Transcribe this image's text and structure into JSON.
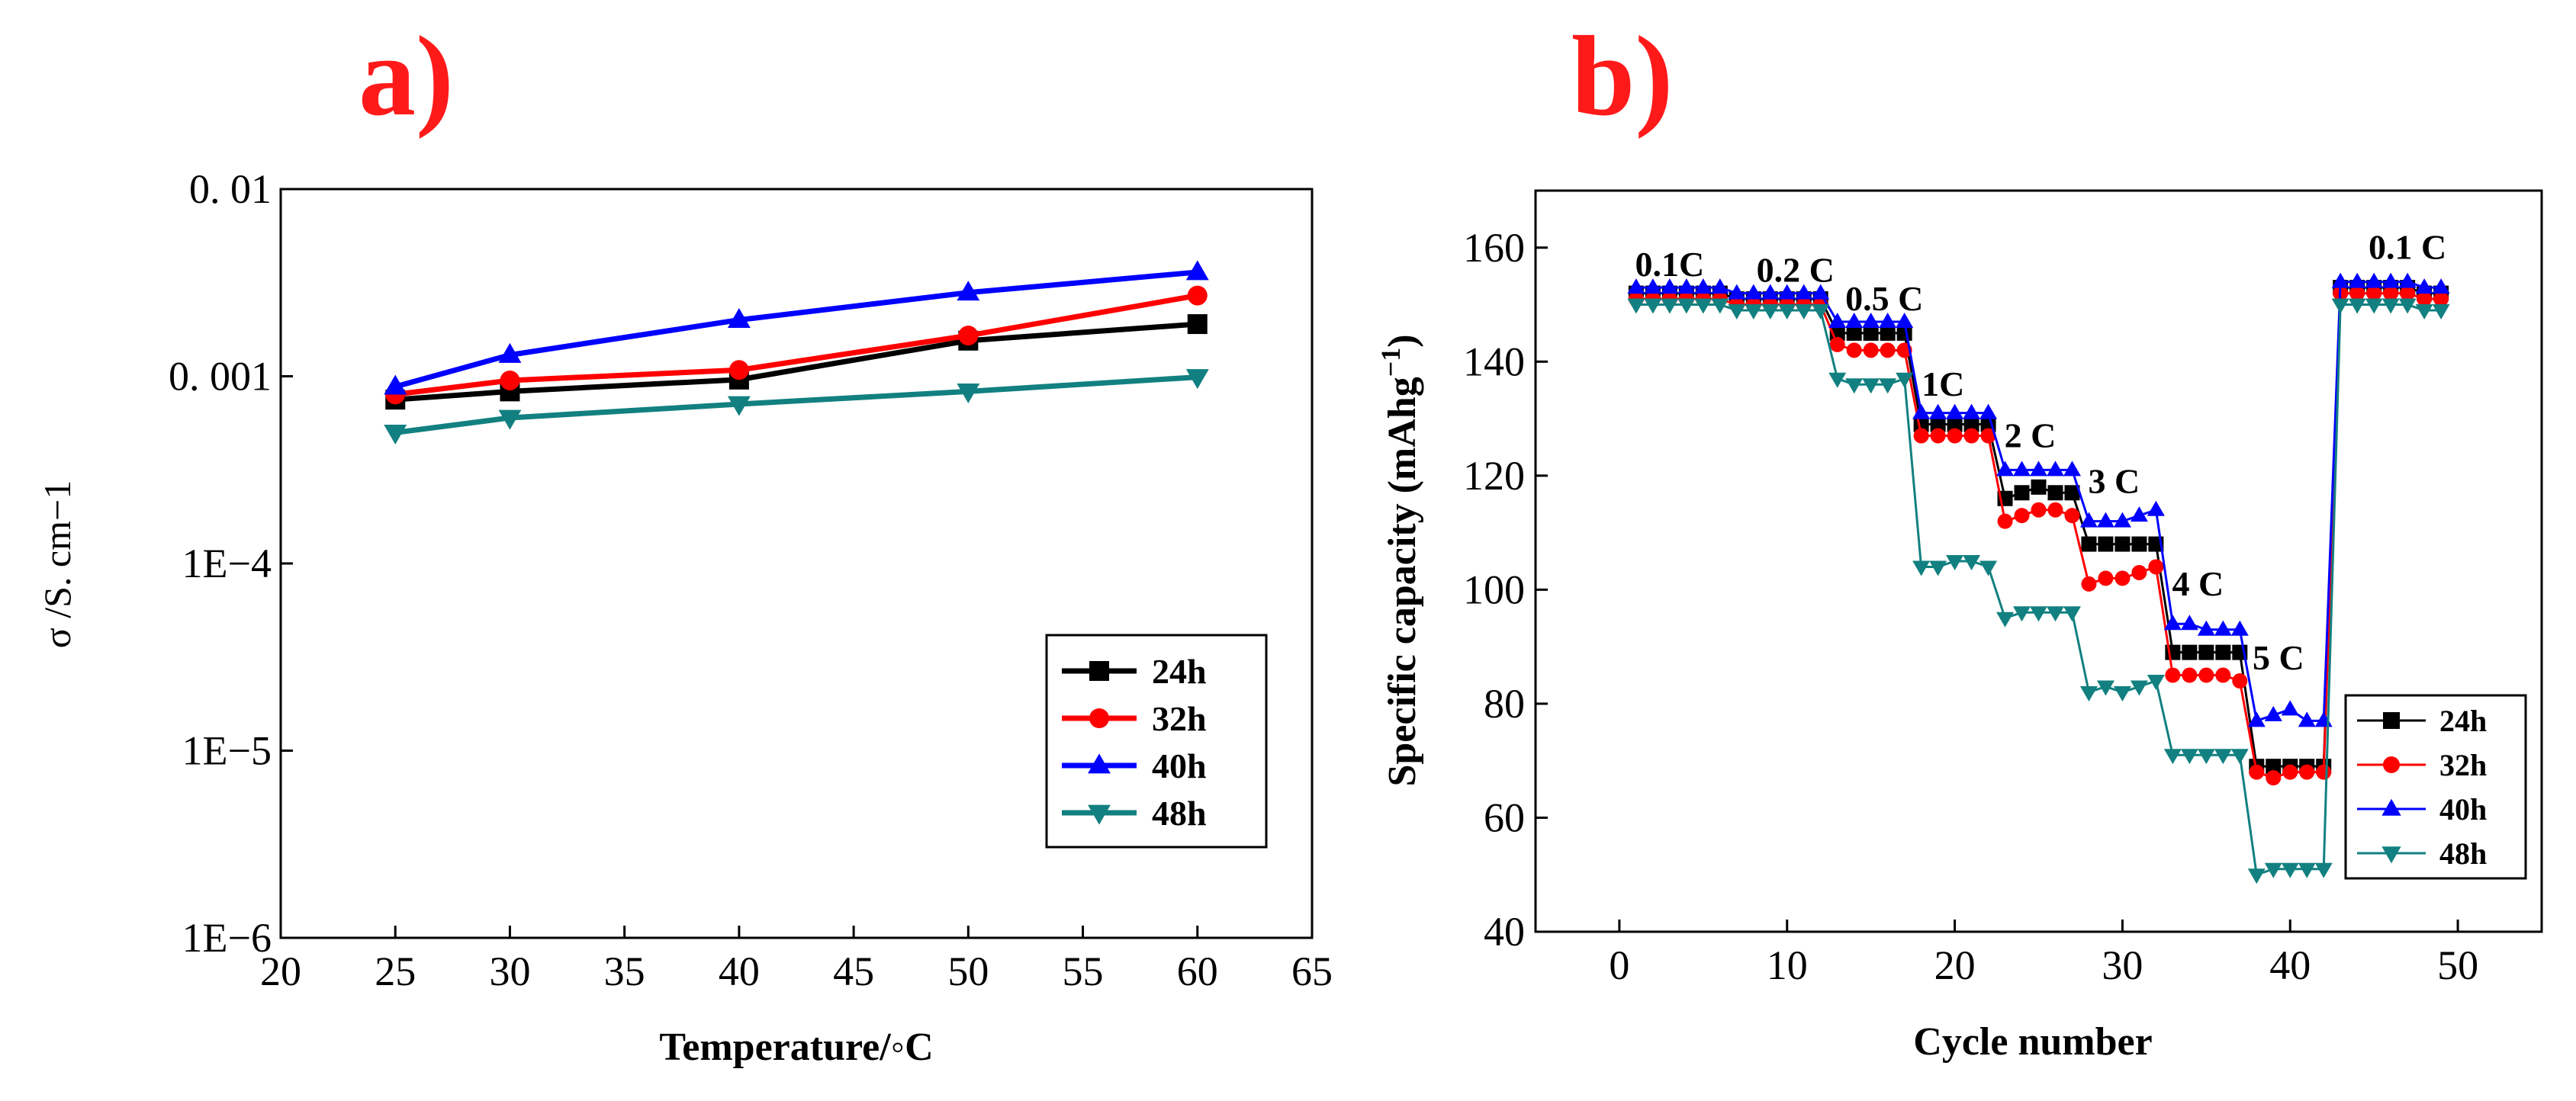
{
  "chart_data": [
    {
      "panel_label": "a)",
      "type": "line",
      "xlabel": "Temperature/◦C",
      "ylabel": "σ /S. cm−1",
      "yscale": "log",
      "xlim": [
        20,
        65
      ],
      "ylim": [
        1e-06,
        0.01
      ],
      "xticks": [
        "20",
        "25",
        "30",
        "35",
        "40",
        "45",
        "50",
        "55",
        "60",
        "65"
      ],
      "yticks": [
        "1E−6",
        "1E−5",
        "1E−4",
        "0. 001",
        "0. 01"
      ],
      "legend_position": "bottom-right",
      "x": [
        25,
        30,
        40,
        50,
        60
      ],
      "series": [
        {
          "name": "24h",
          "color": "#000000",
          "marker": "square",
          "values": [
            0.00075,
            0.00083,
            0.00096,
            0.00155,
            0.0019
          ]
        },
        {
          "name": "32h",
          "color": "#ff0000",
          "marker": "circle",
          "values": [
            0.0008,
            0.00095,
            0.00108,
            0.00165,
            0.0027
          ]
        },
        {
          "name": "40h",
          "color": "#0000ff",
          "marker": "triangle-up",
          "values": [
            0.00088,
            0.0013,
            0.002,
            0.0028,
            0.0036
          ]
        },
        {
          "name": "48h",
          "color": "#128080",
          "marker": "triangle-down",
          "values": [
            0.0005,
            0.0006,
            0.00071,
            0.00083,
            0.00099
          ]
        }
      ]
    },
    {
      "panel_label": "b)",
      "type": "line",
      "xlabel": "Cycle number",
      "ylabel": "Specific capacity (mAhg",
      "ylabel_sup": "−1",
      "ylabel_end": ")",
      "xlim": [
        -5,
        55
      ],
      "ylim": [
        40,
        170
      ],
      "xticks": [
        "0",
        "10",
        "20",
        "30",
        "40",
        "50"
      ],
      "yticks": [
        "40",
        "60",
        "80",
        "100",
        "120",
        "140",
        "160"
      ],
      "legend_position": "bottom-right",
      "annotations": [
        {
          "text": "0.1C",
          "x": 3,
          "y": 155
        },
        {
          "text": "0.2 C",
          "x": 10.5,
          "y": 154
        },
        {
          "text": "0.5 C",
          "x": 15.8,
          "y": 149
        },
        {
          "text": "1C",
          "x": 19.3,
          "y": 134
        },
        {
          "text": "2 C",
          "x": 24.5,
          "y": 125
        },
        {
          "text": "3 C",
          "x": 29.5,
          "y": 117
        },
        {
          "text": "4 C",
          "x": 34.5,
          "y": 99
        },
        {
          "text": "5 C",
          "x": 39.3,
          "y": 86
        },
        {
          "text": "0.1 C",
          "x": 47,
          "y": 158
        }
      ],
      "series": [
        {
          "name": "24h",
          "color": "#000000",
          "marker": "square",
          "x": [
            1,
            2,
            3,
            4,
            5,
            6,
            7,
            8,
            9,
            10,
            11,
            12,
            13,
            14,
            15,
            16,
            17,
            18,
            19,
            20,
            21,
            22,
            23,
            24,
            25,
            26,
            27,
            28,
            29,
            30,
            31,
            32,
            33,
            34,
            35,
            36,
            37,
            38,
            39,
            40,
            41,
            42,
            43,
            44,
            45,
            46,
            47,
            48,
            49
          ],
          "values": [
            152,
            152,
            152,
            152,
            152,
            152,
            151,
            151,
            151,
            151,
            151,
            151,
            145,
            145,
            145,
            145,
            145,
            129,
            129,
            129,
            129,
            129,
            116,
            117,
            118,
            117,
            117,
            108,
            108,
            108,
            108,
            108,
            89,
            89,
            89,
            89,
            89,
            69,
            69,
            69,
            69,
            69,
            153,
            153,
            153,
            153,
            153,
            152,
            152
          ]
        },
        {
          "name": "32h",
          "color": "#ff0000",
          "marker": "circle",
          "x": [
            1,
            2,
            3,
            4,
            5,
            6,
            7,
            8,
            9,
            10,
            11,
            12,
            13,
            14,
            15,
            16,
            17,
            18,
            19,
            20,
            21,
            22,
            23,
            24,
            25,
            26,
            27,
            28,
            29,
            30,
            31,
            32,
            33,
            34,
            35,
            36,
            37,
            38,
            39,
            40,
            41,
            42,
            43,
            44,
            45,
            46,
            47,
            48,
            49
          ],
          "values": [
            151,
            151,
            151,
            151,
            151,
            151,
            150,
            150,
            150,
            150,
            150,
            150,
            143,
            142,
            142,
            142,
            142,
            127,
            127,
            127,
            127,
            127,
            112,
            113,
            114,
            114,
            113,
            101,
            102,
            102,
            103,
            104,
            85,
            85,
            85,
            85,
            84,
            68,
            67,
            68,
            68,
            68,
            152,
            152,
            152,
            152,
            152,
            151,
            151
          ]
        },
        {
          "name": "40h",
          "color": "#0000ff",
          "marker": "triangle-up",
          "x": [
            1,
            2,
            3,
            4,
            5,
            6,
            7,
            8,
            9,
            10,
            11,
            12,
            13,
            14,
            15,
            16,
            17,
            18,
            19,
            20,
            21,
            22,
            23,
            24,
            25,
            26,
            27,
            28,
            29,
            30,
            31,
            32,
            33,
            34,
            35,
            36,
            37,
            38,
            39,
            40,
            41,
            42,
            43,
            44,
            45,
            46,
            47,
            48,
            49
          ],
          "values": [
            153,
            153,
            153,
            153,
            153,
            153,
            152,
            152,
            152,
            152,
            152,
            152,
            147,
            147,
            147,
            147,
            147,
            131,
            131,
            131,
            131,
            131,
            121,
            121,
            121,
            121,
            121,
            112,
            112,
            112,
            113,
            114,
            94,
            94,
            93,
            93,
            93,
            77,
            78,
            79,
            77,
            77,
            154,
            154,
            154,
            154,
            154,
            153,
            153
          ]
        },
        {
          "name": "48h",
          "color": "#128080",
          "marker": "triangle-down",
          "x": [
            1,
            2,
            3,
            4,
            5,
            6,
            7,
            8,
            9,
            10,
            11,
            12,
            13,
            14,
            15,
            16,
            17,
            18,
            19,
            20,
            21,
            22,
            23,
            24,
            25,
            26,
            27,
            28,
            29,
            30,
            31,
            32,
            33,
            34,
            35,
            36,
            37,
            38,
            39,
            40,
            41,
            42,
            43,
            44,
            45,
            46,
            47,
            48,
            49
          ],
          "values": [
            150,
            150,
            150,
            150,
            150,
            150,
            149,
            149,
            149,
            149,
            149,
            149,
            137,
            136,
            136,
            136,
            137,
            104,
            104,
            105,
            105,
            104,
            95,
            96,
            96,
            96,
            96,
            82,
            83,
            82,
            83,
            84,
            71,
            71,
            71,
            71,
            71,
            50,
            51,
            51,
            51,
            51,
            150,
            150,
            150,
            150,
            150,
            149,
            149
          ]
        }
      ]
    }
  ]
}
